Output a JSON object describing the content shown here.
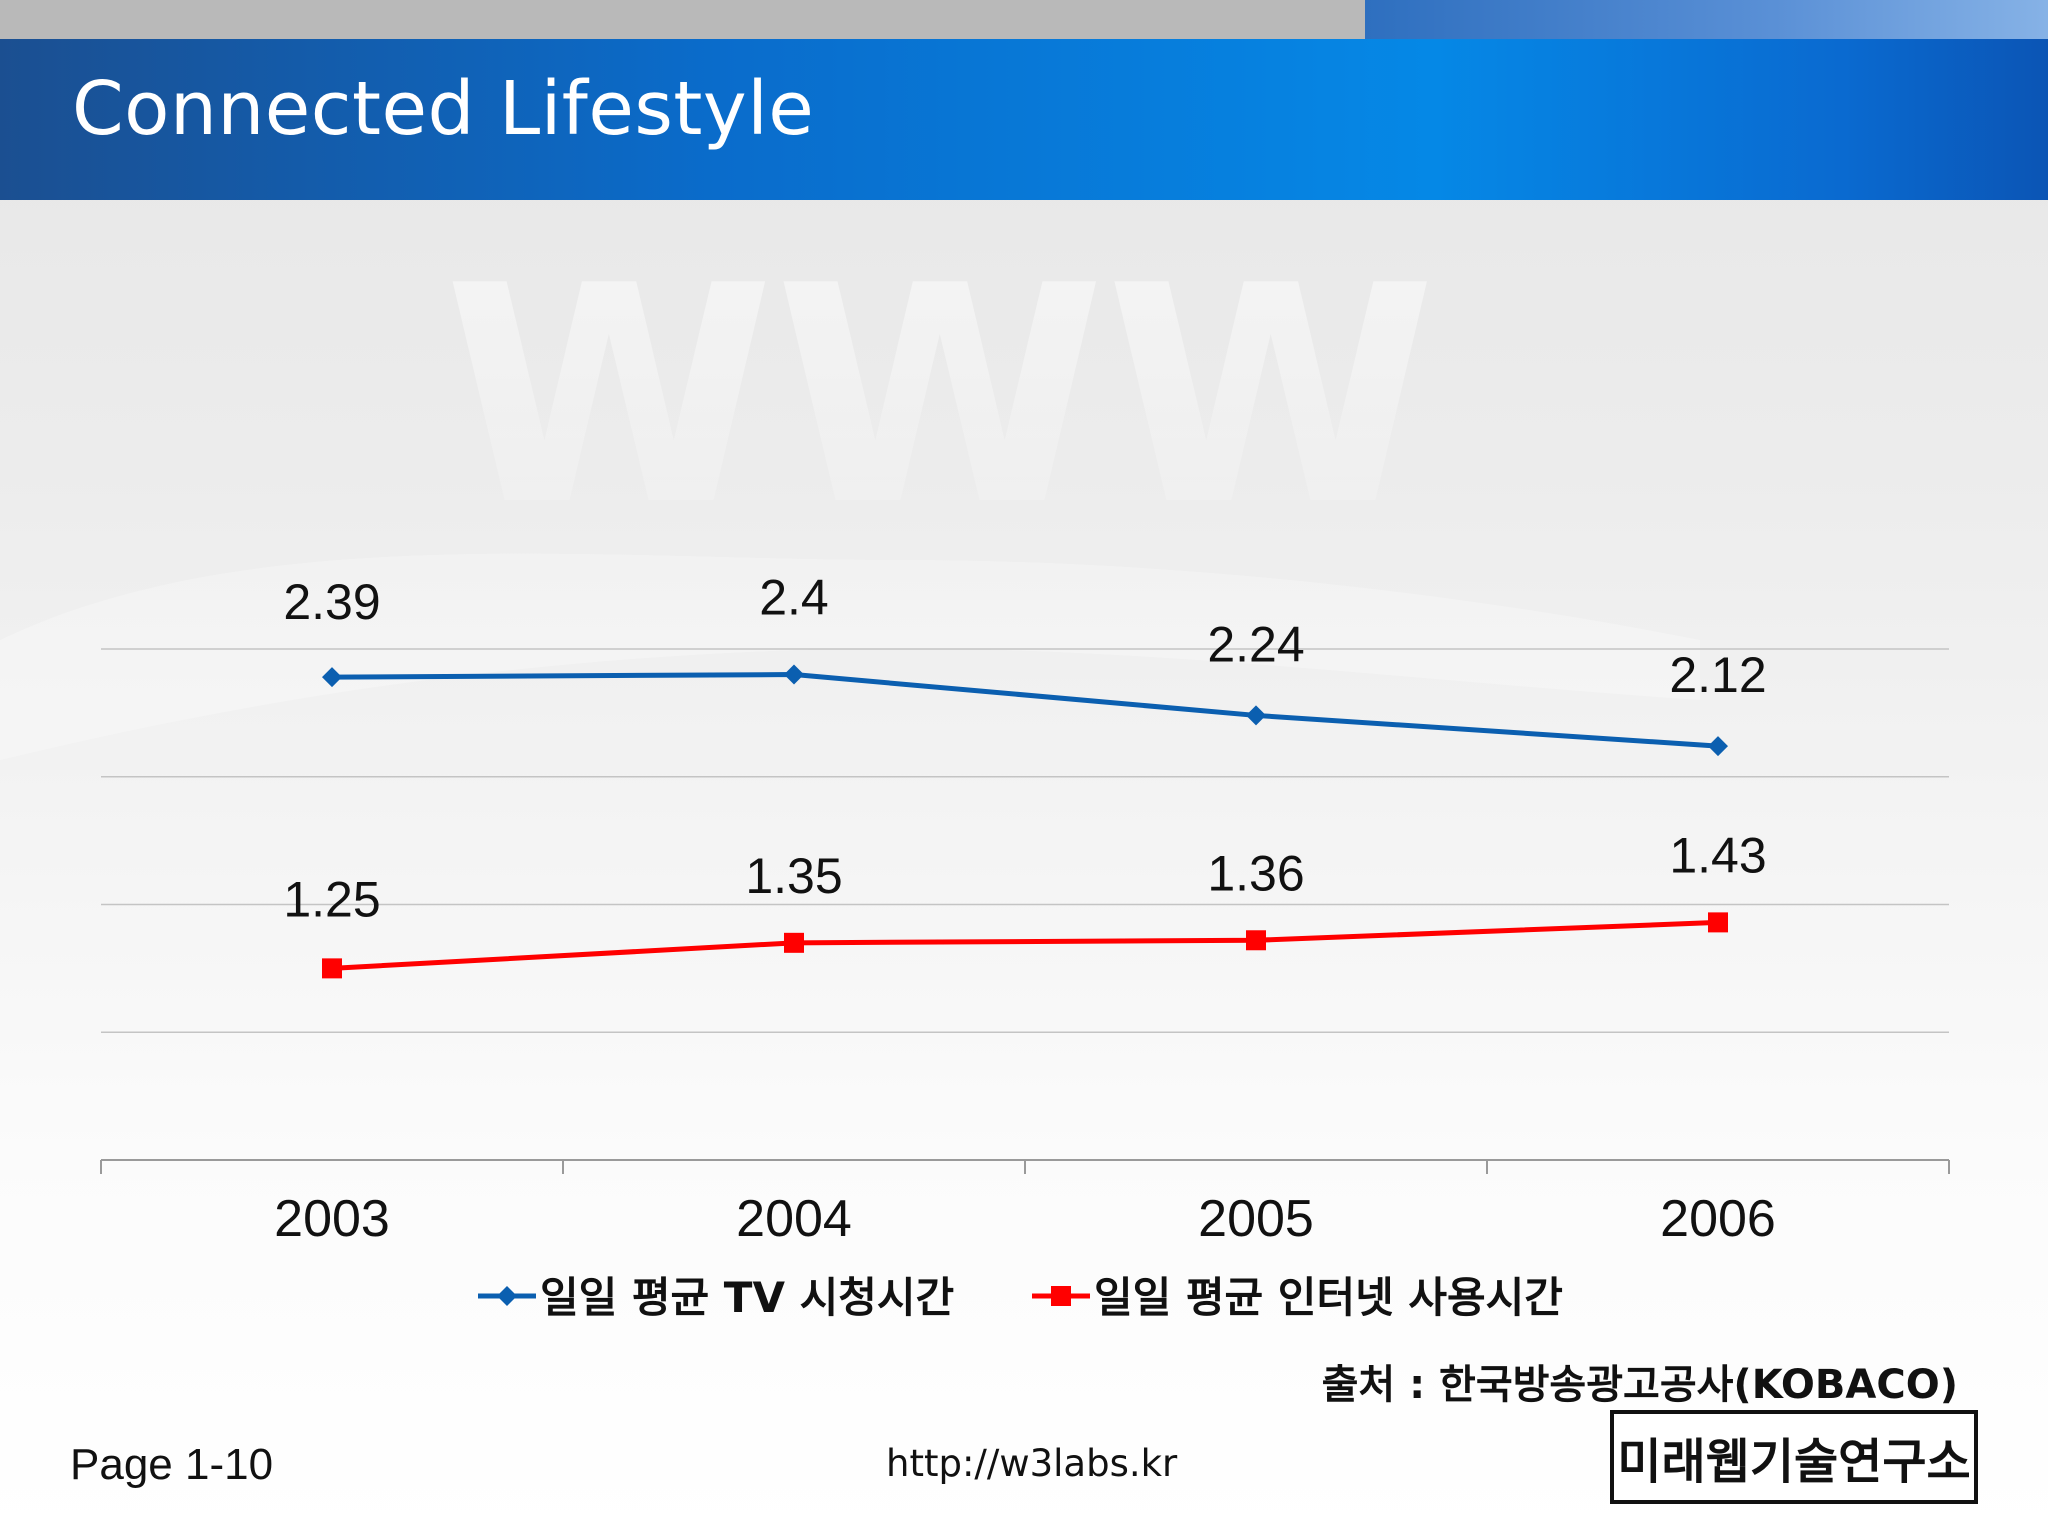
{
  "title": "Connected Lifestyle",
  "chart_data": {
    "type": "line",
    "categories": [
      "2003",
      "2004",
      "2005",
      "2006"
    ],
    "series": [
      {
        "name": "일일 평균 TV 시청시간",
        "values": [
          2.39,
          2.4,
          2.24,
          2.12
        ],
        "color": "#0b5fb0",
        "marker": "diamond"
      },
      {
        "name": "일일 평균 인터넷 사용시간",
        "values": [
          1.25,
          1.35,
          1.36,
          1.43
        ],
        "color": "#ff0000",
        "marker": "square"
      }
    ],
    "ylim": [
      0.5,
      2.5
    ],
    "grid": true,
    "legend": "bottom"
  },
  "source": "출처 : 한국방송광고공사(KOBACO)",
  "footer": {
    "page": "Page 1-10",
    "url": "http://w3labs.kr"
  },
  "logo_text": "미래웹기술연구소",
  "colors": {
    "title_bar": "#0a6ccb",
    "tv_series": "#0b5fb0",
    "internet_series": "#ff0000"
  }
}
